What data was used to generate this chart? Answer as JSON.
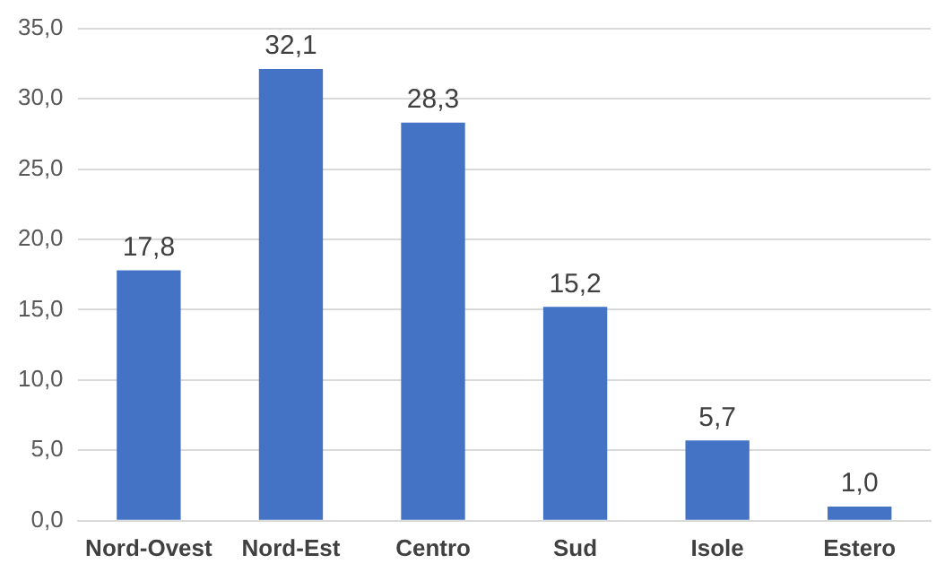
{
  "chart_data": {
    "type": "bar",
    "categories": [
      "Nord-Ovest",
      "Nord-Est",
      "Centro",
      "Sud",
      "Isole",
      "Estero"
    ],
    "values": [
      17.8,
      32.1,
      28.3,
      15.2,
      5.7,
      1.0
    ],
    "value_labels": [
      "17,8",
      "32,1",
      "28,3",
      "15,2",
      "5,7",
      "1,0"
    ],
    "color": "#4472c4",
    "ylim": [
      0,
      35
    ],
    "yticks": [
      {
        "value": 0,
        "label": "0,0"
      },
      {
        "value": 5,
        "label": "5,0"
      },
      {
        "value": 10,
        "label": "10,0"
      },
      {
        "value": 15,
        "label": "15,0"
      },
      {
        "value": 20,
        "label": "20,0"
      },
      {
        "value": 25,
        "label": "25,0"
      },
      {
        "value": 30,
        "label": "30,0"
      },
      {
        "value": 35,
        "label": "35,0"
      }
    ],
    "grid": "y"
  }
}
